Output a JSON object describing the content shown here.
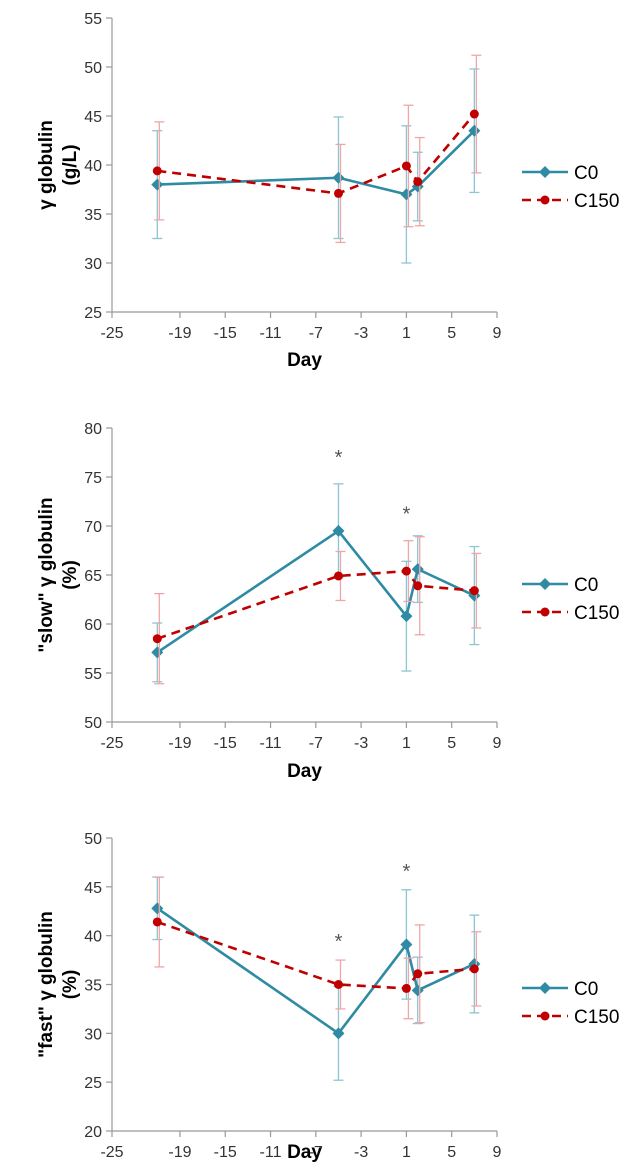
{
  "colors": {
    "C0": "#2e8ba3",
    "C150": "#c00000",
    "C0_err": "#8cc5d3",
    "C150_err": "#f0a6a6",
    "axis": "#999999"
  },
  "chart_data": [
    {
      "type": "line",
      "x_ticks": [
        -25,
        -19,
        -15,
        -11,
        -7,
        -3,
        1,
        5,
        9
      ],
      "xlim": [
        -25,
        9
      ],
      "y_ticks": [
        25,
        30,
        35,
        40,
        45,
        50,
        55
      ],
      "ylim": [
        25,
        55
      ],
      "xlabel": "Day",
      "ylabel_lines": [
        "γ globulin",
        "(g/L)"
      ],
      "significance_x": [],
      "series": [
        {
          "name": "C0",
          "x": [
            -21,
            -5,
            1,
            2,
            7
          ],
          "y": [
            38.0,
            38.7,
            37.0,
            37.8,
            43.5
          ],
          "err": [
            5.5,
            6.2,
            7.0,
            3.5,
            6.3
          ]
        },
        {
          "name": "C150",
          "x": [
            -21,
            -5,
            1,
            2,
            7
          ],
          "y": [
            39.4,
            37.1,
            39.9,
            38.3,
            45.2
          ],
          "err": [
            5.0,
            5.0,
            6.2,
            4.5,
            6.0
          ]
        }
      ]
    },
    {
      "type": "line",
      "x_ticks": [
        -25,
        -19,
        -15,
        -11,
        -7,
        -3,
        1,
        5,
        9
      ],
      "xlim": [
        -25,
        9
      ],
      "y_ticks": [
        50,
        55,
        60,
        65,
        70,
        75,
        80
      ],
      "ylim": [
        50,
        80
      ],
      "xlabel": "Day",
      "ylabel_lines": [
        "\"slow\" γ globulin",
        "(%)"
      ],
      "significance_x": [
        -5,
        1
      ],
      "series": [
        {
          "name": "C0",
          "x": [
            -21,
            -5,
            1,
            2,
            7
          ],
          "y": [
            57.1,
            69.5,
            60.8,
            65.6,
            62.9
          ],
          "err": [
            3.0,
            4.8,
            5.6,
            3.4,
            5.0
          ]
        },
        {
          "name": "C150",
          "x": [
            -21,
            -5,
            1,
            2,
            7
          ],
          "y": [
            58.5,
            64.9,
            65.4,
            63.9,
            63.4
          ],
          "err": [
            4.6,
            2.5,
            3.1,
            5.0,
            3.8
          ]
        }
      ]
    },
    {
      "type": "line",
      "x_ticks": [
        -25,
        -19,
        -15,
        -11,
        -7,
        -3,
        1,
        5,
        9
      ],
      "xlim": [
        -25,
        9
      ],
      "y_ticks": [
        20,
        25,
        30,
        35,
        40,
        45,
        50
      ],
      "ylim": [
        20,
        50
      ],
      "xlabel": "Day",
      "ylabel_lines": [
        "\"fast\" γ globulin",
        "(%)"
      ],
      "significance_x": [
        -5,
        1
      ],
      "series": [
        {
          "name": "C0",
          "x": [
            -21,
            -5,
            1,
            2,
            7
          ],
          "y": [
            42.8,
            30.0,
            39.1,
            34.4,
            37.1
          ],
          "err": [
            3.2,
            4.8,
            5.6,
            3.4,
            5.0
          ]
        },
        {
          "name": "C150",
          "x": [
            -21,
            -5,
            1,
            2,
            7
          ],
          "y": [
            41.4,
            35.0,
            34.6,
            36.1,
            36.6
          ],
          "err": [
            4.6,
            2.5,
            3.1,
            5.0,
            3.8
          ]
        }
      ]
    }
  ]
}
